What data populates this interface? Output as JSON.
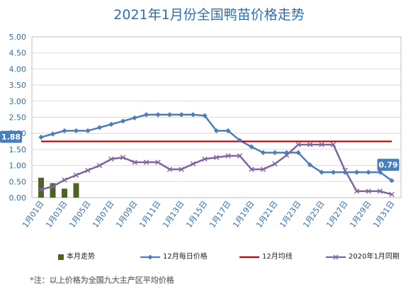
{
  "chart_data": {
    "type": "line",
    "title": "2021年1月份全国鸭苗价格走势",
    "x": [
      "1月01日",
      "1月02日",
      "1月03日",
      "1月04日",
      "1月05日",
      "1月06日",
      "1月07日",
      "1月08日",
      "1月09日",
      "1月10日",
      "1月11日",
      "1月12日",
      "1月13日",
      "1月14日",
      "1月15日",
      "1月16日",
      "1月17日",
      "1月18日",
      "1月19日",
      "1月20日",
      "1月21日",
      "1月22日",
      "1月23日",
      "1月24日",
      "1月25日",
      "1月26日",
      "1月27日",
      "1月28日",
      "1月29日",
      "1月30日",
      "1月31日"
    ],
    "x_tick_labels": [
      "1月01日",
      "1月03日",
      "1月05日",
      "1月07日",
      "1月09日",
      "1月11日",
      "1月13日",
      "1月15日",
      "1月17日",
      "1月19日",
      "1月21日",
      "1月23日",
      "1月25日",
      "1月27日",
      "1月29日",
      "1月31日"
    ],
    "ylim": [
      0,
      5
    ],
    "y_ticks": [
      "0.00",
      "0.50",
      "1.00",
      "1.50",
      "2.00",
      "2.50",
      "3.00",
      "3.50",
      "4.00",
      "4.50",
      "5.00"
    ],
    "grid": true,
    "legend_position": "bottom",
    "series": [
      {
        "name": "本月走势",
        "type": "bar",
        "color": "#4f6228",
        "values": [
          0.62,
          0.45,
          0.28,
          0.45,
          null,
          null,
          null,
          null,
          null,
          null,
          null,
          null,
          null,
          null,
          null,
          null,
          null,
          null,
          null,
          null,
          null,
          null,
          null,
          null,
          null,
          null,
          null,
          null,
          null,
          null,
          null
        ]
      },
      {
        "name": "12月每日价格",
        "type": "line",
        "marker": "diamond",
        "color": "#4a7ebb",
        "values": [
          1.88,
          1.98,
          2.08,
          2.08,
          2.08,
          2.18,
          2.28,
          2.38,
          2.48,
          2.58,
          2.58,
          2.58,
          2.58,
          2.58,
          2.55,
          2.08,
          2.08,
          1.78,
          1.58,
          1.4,
          1.4,
          1.4,
          1.4,
          1.02,
          0.79,
          0.79,
          0.79,
          0.79,
          0.79,
          0.79,
          0.53
        ],
        "labels": [
          {
            "index": 0,
            "text": "1.88"
          },
          {
            "index": 29,
            "text": "0.79"
          }
        ]
      },
      {
        "name": "12月均线",
        "type": "line",
        "color": "#c00000",
        "values": [
          1.75,
          1.75,
          1.75,
          1.75,
          1.75,
          1.75,
          1.75,
          1.75,
          1.75,
          1.75,
          1.75,
          1.75,
          1.75,
          1.75,
          1.75,
          1.75,
          1.75,
          1.75,
          1.75,
          1.75,
          1.75,
          1.75,
          1.75,
          1.75,
          1.75,
          1.75,
          1.75,
          1.75,
          1.75,
          1.75,
          1.75
        ]
      },
      {
        "name": "2020年1月同期",
        "type": "line",
        "marker": "x",
        "color": "#8064a2",
        "values": [
          0.25,
          0.35,
          0.55,
          0.7,
          0.85,
          1.0,
          1.2,
          1.25,
          1.1,
          1.1,
          1.1,
          0.88,
          0.88,
          1.05,
          1.2,
          1.25,
          1.3,
          1.3,
          0.88,
          0.88,
          1.05,
          1.32,
          1.65,
          1.65,
          1.65,
          1.65,
          0.85,
          0.2,
          0.2,
          0.2,
          0.1
        ]
      }
    ],
    "note": "*注：以上价格为全国九大主产区平均价格"
  }
}
